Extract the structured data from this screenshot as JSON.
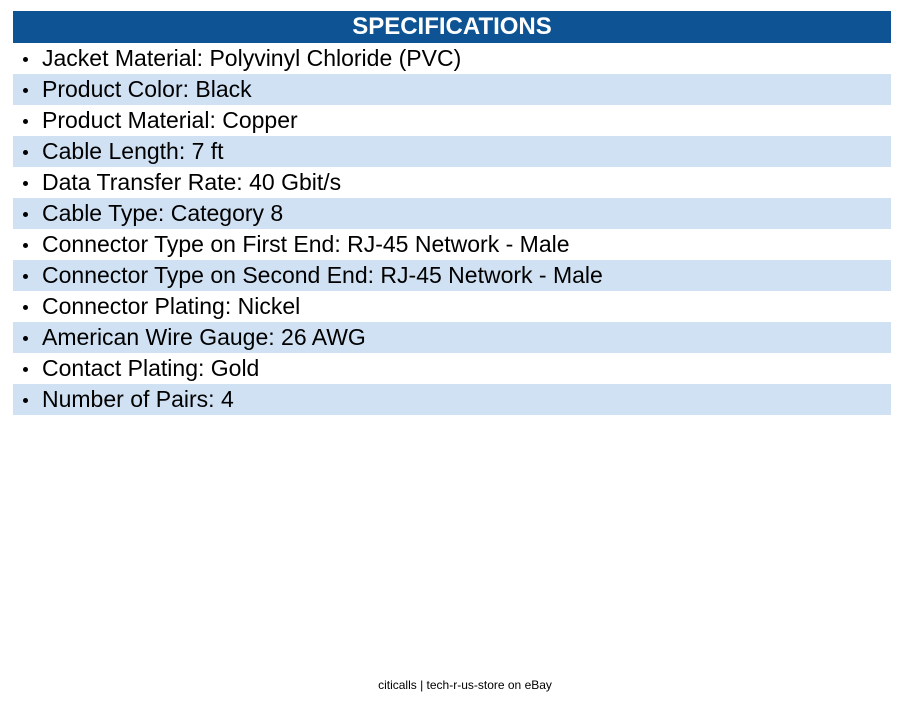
{
  "header": {
    "title": "SPECIFICATIONS"
  },
  "items": [
    "Jacket Material: Polyvinyl Chloride (PVC)",
    "Product Color: Black",
    "Product Material: Copper",
    "Cable Length: 7 ft",
    "Data Transfer Rate: 40 Gbit/s",
    "Cable Type: Category 8",
    "Connector Type on First End: RJ-45 Network - Male",
    "Connector Type on Second End: RJ-45 Network - Male",
    "Connector Plating: Nickel",
    "American Wire Gauge: 26 AWG",
    "Contact Plating: Gold",
    "Number of Pairs: 4"
  ],
  "footer": {
    "text": "citicalls | tech-r-us-store on eBay"
  }
}
